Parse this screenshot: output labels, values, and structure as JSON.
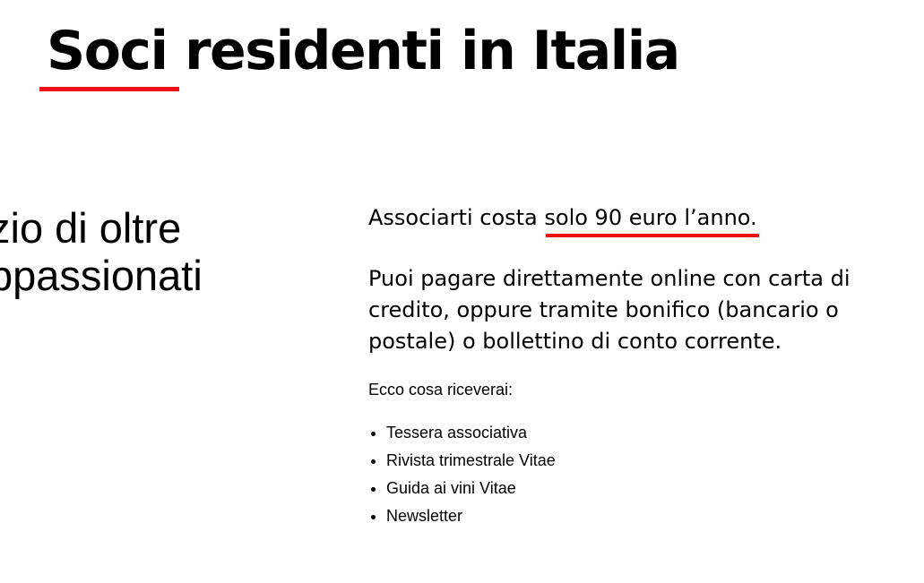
{
  "title": {
    "text": "Soci residenti in Italia",
    "underlined": "Soci"
  },
  "left_column": {
    "line1": "zio di oltre",
    "line2": "ppassionati"
  },
  "right_column": {
    "lead_prefix": "Associarti costa ",
    "lead_highlight": "solo 90 euro l’anno.",
    "payment": "Puoi pagare direttamente online con carta di credito, oppure tramite bonifico (bancario o postale) o bollettino di conto corrente.",
    "benefits_intro": "Ecco cosa riceverai:",
    "benefits": [
      "Tessera associativa",
      "Rivista trimestrale Vitae",
      "Guida ai vini Vitae",
      "Newsletter"
    ]
  },
  "colors": {
    "accent": "#ee1111"
  }
}
